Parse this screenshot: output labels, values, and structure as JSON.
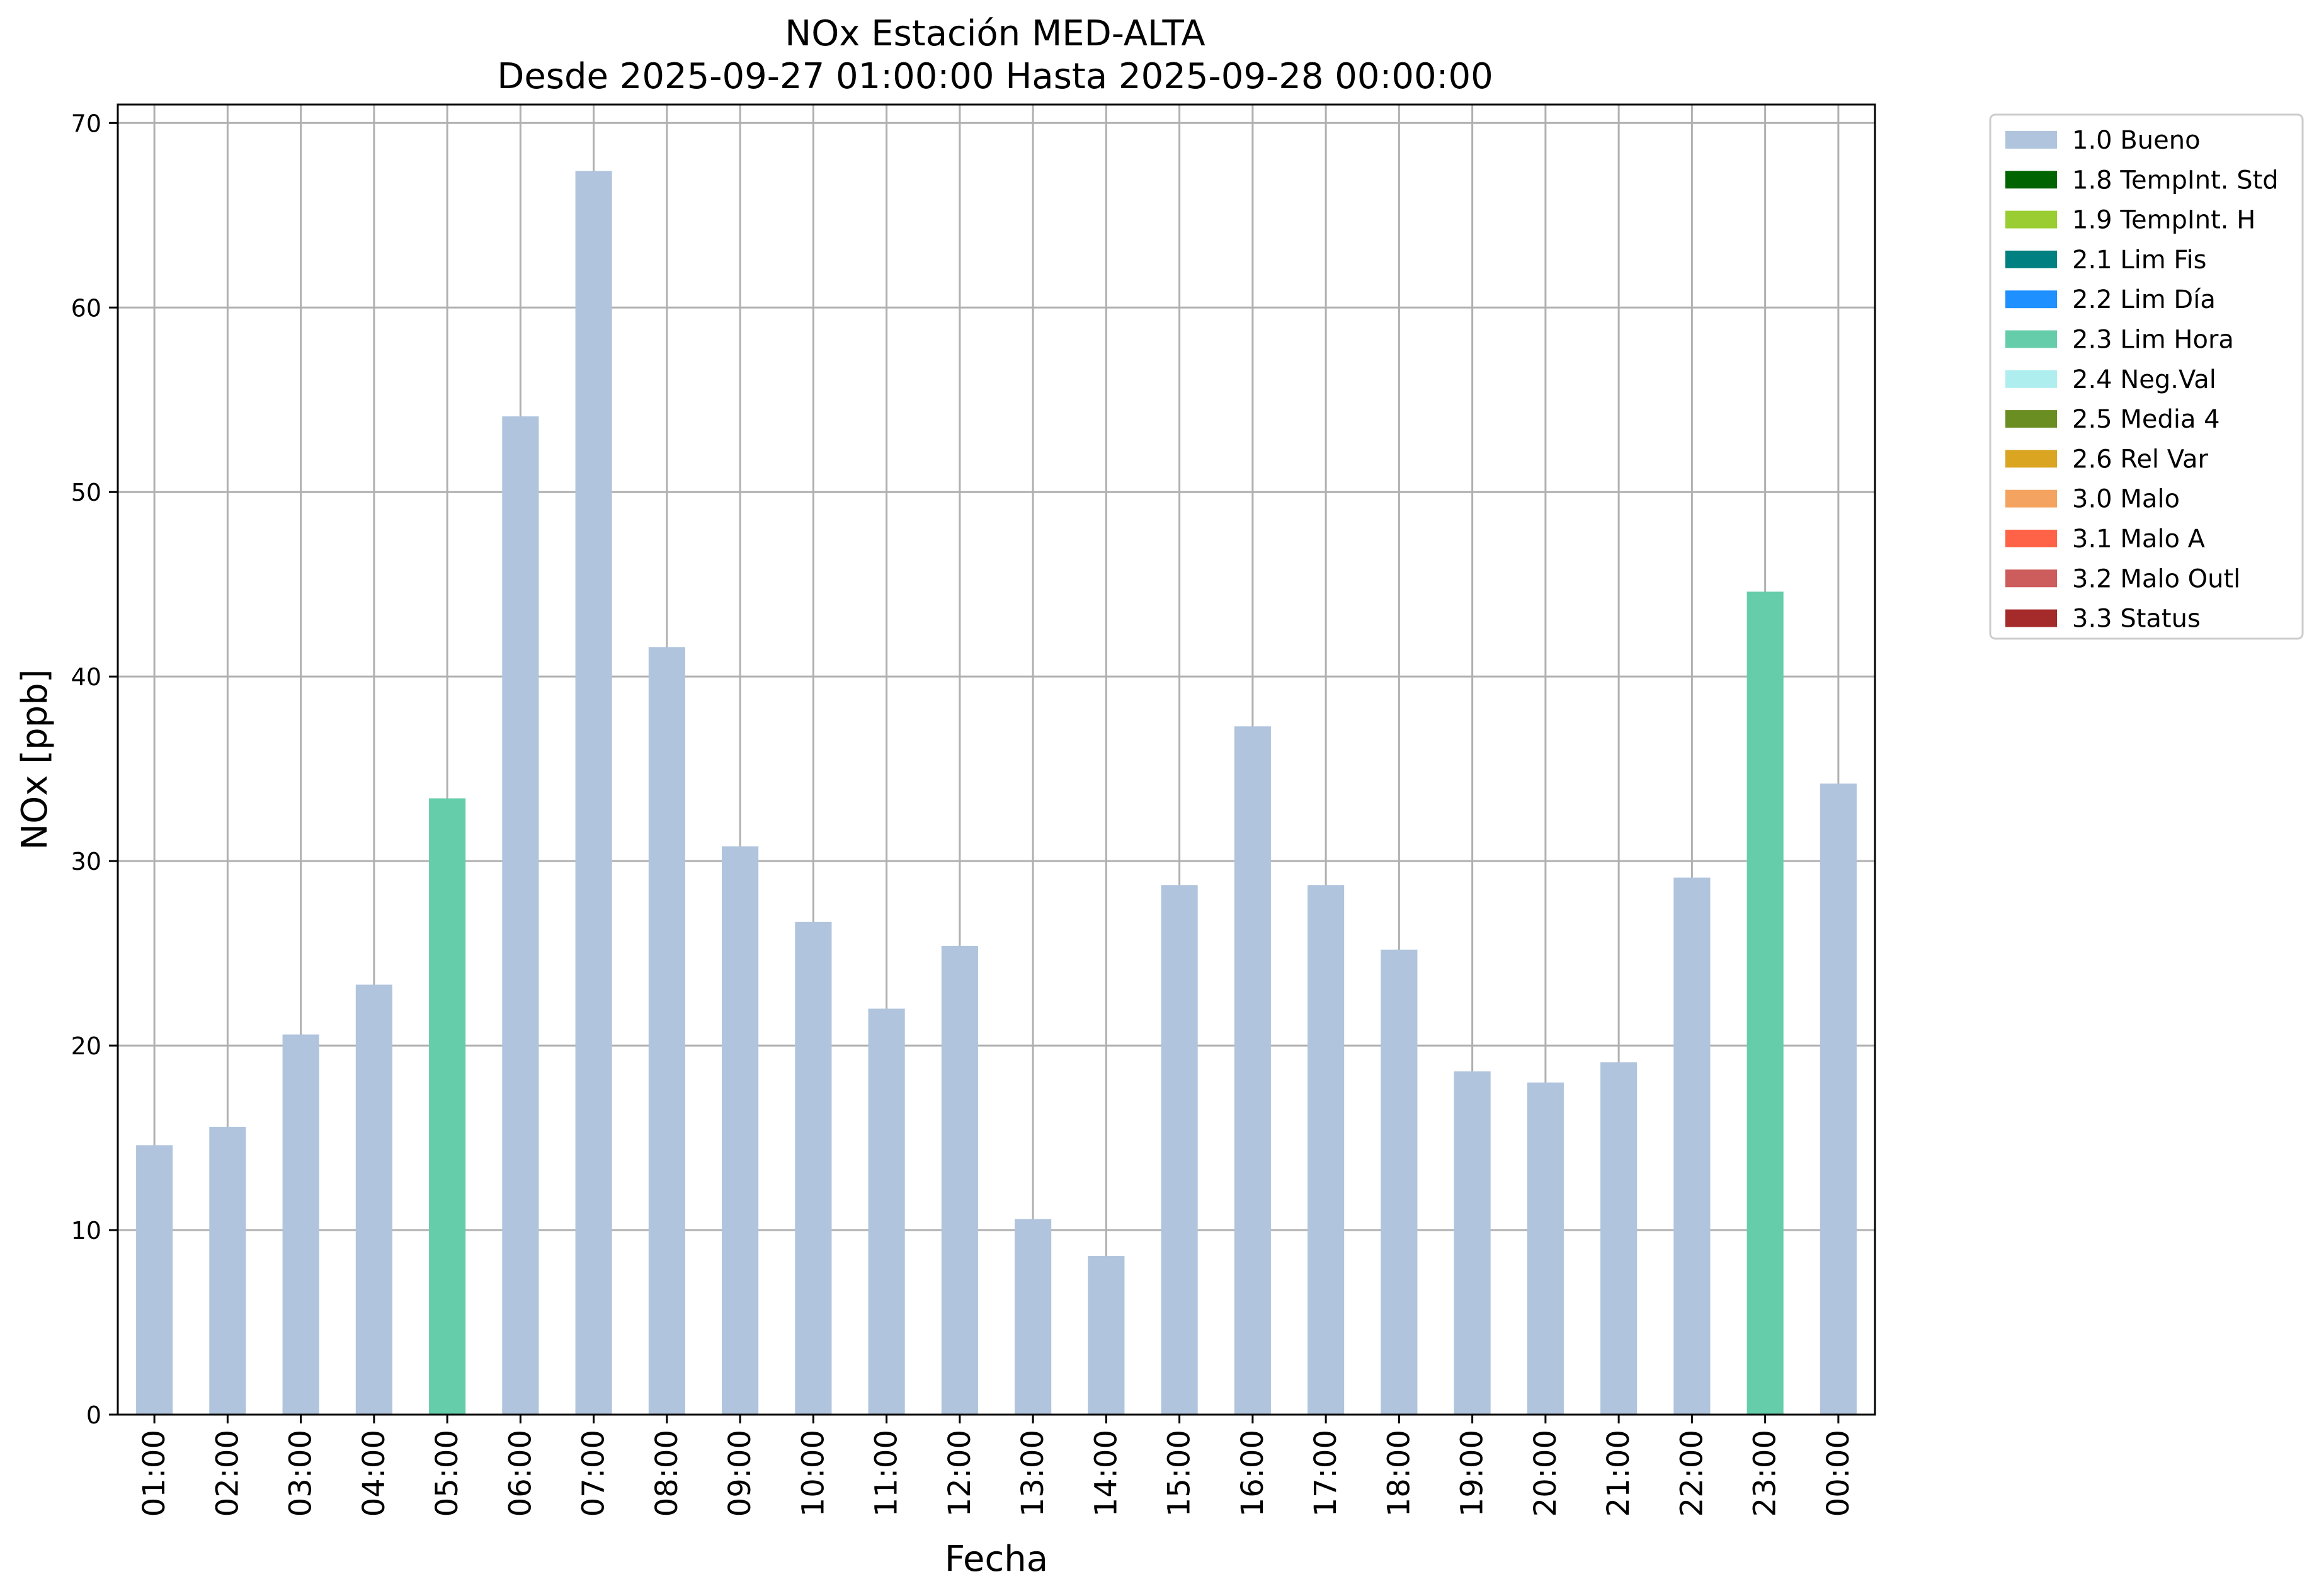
{
  "chart_data": {
    "type": "bar",
    "title": "NOx Estación MED-ALTA",
    "subtitle": "Desde 2025-09-27 01:00:00 Hasta 2025-09-28 00:00:00",
    "xlabel": "Fecha",
    "ylabel": "NOx [ppb]",
    "ylim": [
      0,
      71
    ],
    "yticks": [
      0,
      10,
      20,
      30,
      40,
      50,
      60,
      70
    ],
    "grid": true,
    "legend_position": "outside-top-right",
    "categories": [
      "01:00",
      "02:00",
      "03:00",
      "04:00",
      "05:00",
      "06:00",
      "07:00",
      "08:00",
      "09:00",
      "10:00",
      "11:00",
      "12:00",
      "13:00",
      "14:00",
      "15:00",
      "16:00",
      "17:00",
      "18:00",
      "19:00",
      "20:00",
      "21:00",
      "22:00",
      "23:00",
      "00:00"
    ],
    "values": [
      14.6,
      15.6,
      20.6,
      23.3,
      33.4,
      54.1,
      67.4,
      41.6,
      30.8,
      26.7,
      22.0,
      25.4,
      10.6,
      8.6,
      28.7,
      37.3,
      28.7,
      25.2,
      18.6,
      18.0,
      19.1,
      29.1,
      44.6,
      34.2
    ],
    "flags": [
      "1.0 Bueno",
      "1.0 Bueno",
      "1.0 Bueno",
      "1.0 Bueno",
      "2.3 Lim Hora",
      "1.0 Bueno",
      "1.0 Bueno",
      "1.0 Bueno",
      "1.0 Bueno",
      "1.0 Bueno",
      "1.0 Bueno",
      "1.0 Bueno",
      "1.0 Bueno",
      "1.0 Bueno",
      "1.0 Bueno",
      "1.0 Bueno",
      "1.0 Bueno",
      "1.0 Bueno",
      "1.0 Bueno",
      "1.0 Bueno",
      "1.0 Bueno",
      "1.0 Bueno",
      "2.3 Lim Hora",
      "1.0 Bueno"
    ],
    "legend": [
      {
        "label": "1.0 Bueno",
        "color": "#b0c4de"
      },
      {
        "label": "1.8 TempInt. Std",
        "color": "#006400"
      },
      {
        "label": "1.9 TempInt. H",
        "color": "#9acd32"
      },
      {
        "label": "2.1 Lim Fis",
        "color": "#008080"
      },
      {
        "label": "2.2 Lim Día",
        "color": "#1e90ff"
      },
      {
        "label": "2.3 Lim Hora",
        "color": "#66cdaa"
      },
      {
        "label": "2.4 Neg.Val",
        "color": "#afeeee"
      },
      {
        "label": "2.5 Media 4",
        "color": "#6b8e23"
      },
      {
        "label": "2.6 Rel Var",
        "color": "#daa520"
      },
      {
        "label": "3.0 Malo",
        "color": "#f4a460"
      },
      {
        "label": "3.1 Malo A",
        "color": "#ff6347"
      },
      {
        "label": "3.2 Malo Outl",
        "color": "#cd5c5c"
      },
      {
        "label": "3.3 Status",
        "color": "#a52a2a"
      }
    ]
  }
}
